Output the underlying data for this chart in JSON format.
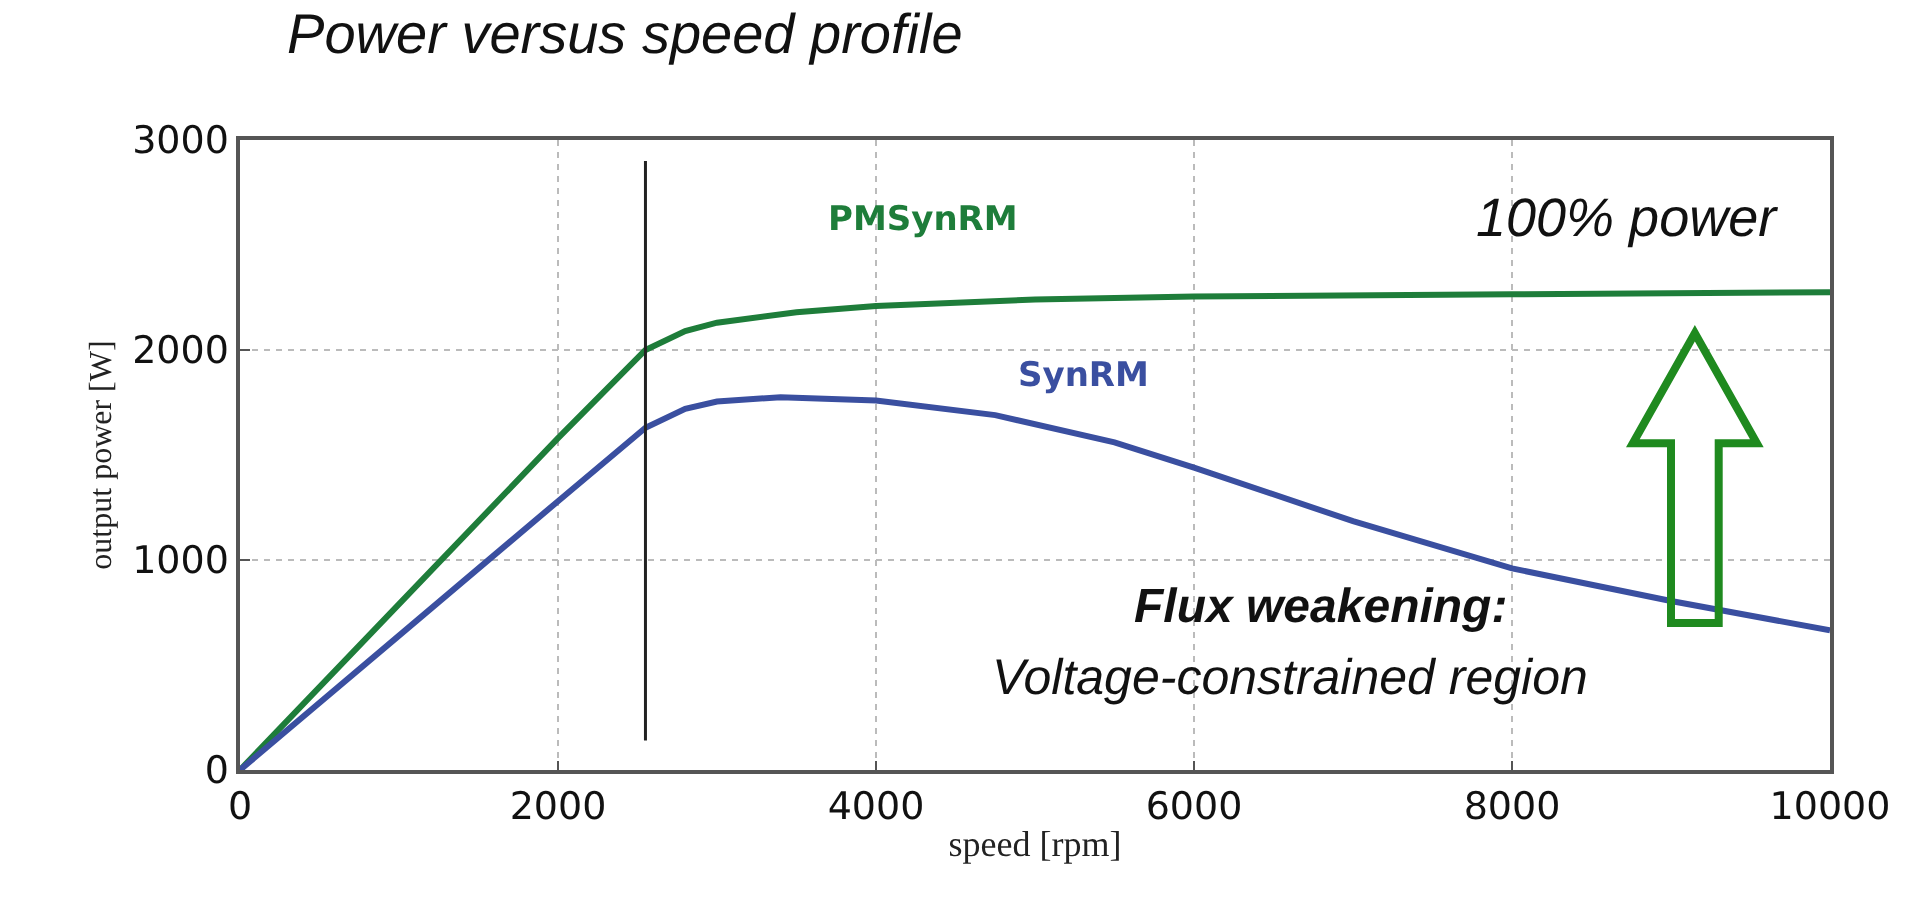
{
  "chart_data": {
    "type": "line",
    "title": "Power versus speed profile",
    "xlabel": "speed [rpm]",
    "ylabel": "output power [W]",
    "xlim": [
      0,
      10000
    ],
    "xticks": [
      0,
      2000,
      4000,
      6000,
      8000,
      10000
    ],
    "ylim": [
      0,
      3000
    ],
    "yticks": [
      0,
      1000,
      2000,
      3000
    ],
    "grid": true,
    "legend": false,
    "marker": "none",
    "line_style": "solid",
    "series": [
      {
        "name": "PMSynRM",
        "color": "#1e7d3a",
        "x": [
          0,
          1000,
          2000,
          2550,
          2800,
          3000,
          3500,
          4000,
          5000,
          6000,
          8000,
          10000
        ],
        "values": [
          0,
          790,
          1580,
          2000,
          2090,
          2130,
          2180,
          2210,
          2240,
          2255,
          2265,
          2275
        ]
      },
      {
        "name": "SynRM",
        "color": "#3a4fa0",
        "x": [
          0,
          1000,
          2000,
          2550,
          2800,
          3000,
          3400,
          4000,
          4750,
          5500,
          6000,
          7000,
          8000,
          9000,
          10000
        ],
        "values": [
          0,
          640,
          1280,
          1630,
          1720,
          1755,
          1775,
          1760,
          1690,
          1560,
          1440,
          1185,
          960,
          805,
          665
        ]
      },
      {
        "color": "#222222",
        "x": [
          2550,
          2550
        ],
        "values": [
          140,
          2900
        ]
      }
    ],
    "annotations": [
      "100% power",
      "Flux weakening:",
      "Voltage-constrained region"
    ]
  }
}
